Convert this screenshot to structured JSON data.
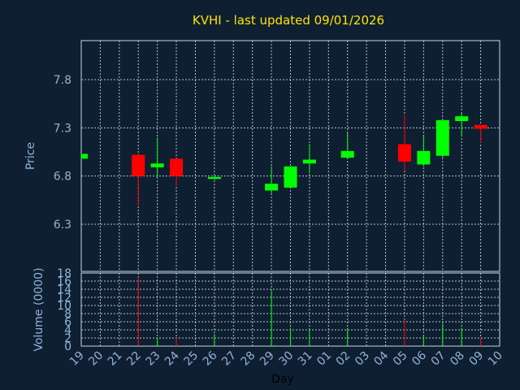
{
  "chart_data": {
    "type": "candlestick",
    "title": "KVHI - last updated 09/01/2026",
    "xlabel": "Day",
    "price_ylabel": "Price",
    "volume_ylabel": "Volume (0000)",
    "x_ticks": [
      "19",
      "20",
      "21",
      "22",
      "23",
      "24",
      "25",
      "26",
      "27",
      "28",
      "29",
      "30",
      "31",
      "01",
      "02",
      "03",
      "04",
      "05",
      "06",
      "07",
      "08",
      "09",
      "10"
    ],
    "price_ticks": [
      "7.8",
      "7.3",
      "6.8",
      "6.3"
    ],
    "price_ylim": [
      6.3,
      7.8
    ],
    "volume_ticks": [
      "18",
      "16",
      "14",
      "12",
      "10",
      "8",
      "6",
      "4",
      "2",
      "0"
    ],
    "volume_ylim": [
      0,
      18
    ],
    "grid": true,
    "colors": {
      "up": "#00ff00",
      "down": "#ff0000",
      "title": "#ffe400",
      "tick": "#8fb4d6",
      "grid": "#c8d4e0",
      "background": "#0f1f32"
    },
    "candles": [
      {
        "day": "19",
        "open": 6.98,
        "high": 7.03,
        "low": 6.98,
        "close": 7.03,
        "volume": 0
      },
      {
        "day": "22",
        "open": 7.02,
        "high": 7.02,
        "low": 6.5,
        "close": 6.8,
        "volume": 17
      },
      {
        "day": "23",
        "open": 6.89,
        "high": 7.2,
        "low": 6.78,
        "close": 6.93,
        "volume": 2
      },
      {
        "day": "24",
        "open": 6.98,
        "high": 6.98,
        "low": 6.7,
        "close": 6.8,
        "volume": 2
      },
      {
        "day": "26",
        "open": 6.77,
        "high": 6.8,
        "low": 6.76,
        "close": 6.79,
        "volume": 3
      },
      {
        "day": "29",
        "open": 6.65,
        "high": 6.9,
        "low": 6.62,
        "close": 6.72,
        "volume": 13.5
      },
      {
        "day": "30",
        "open": 6.68,
        "high": 6.9,
        "low": 6.68,
        "close": 6.9,
        "volume": 4.5
      },
      {
        "day": "31",
        "open": 6.93,
        "high": 7.13,
        "low": 6.83,
        "close": 6.97,
        "volume": 4
      },
      {
        "day": "02",
        "open": 6.99,
        "high": 7.25,
        "low": 6.99,
        "close": 7.06,
        "volume": 4.5
      },
      {
        "day": "05",
        "open": 7.13,
        "high": 7.43,
        "low": 6.86,
        "close": 6.95,
        "volume": 6.5
      },
      {
        "day": "06",
        "open": 6.92,
        "high": 7.21,
        "low": 6.9,
        "close": 7.06,
        "volume": 2.5
      },
      {
        "day": "07",
        "open": 7.01,
        "high": 7.38,
        "low": 6.99,
        "close": 7.38,
        "volume": 5.5
      },
      {
        "day": "08",
        "open": 7.37,
        "high": 7.46,
        "low": 7.22,
        "close": 7.42,
        "volume": 4.5
      },
      {
        "day": "09",
        "open": 7.33,
        "high": 7.33,
        "low": 7.14,
        "close": 7.29,
        "volume": 2
      }
    ]
  }
}
